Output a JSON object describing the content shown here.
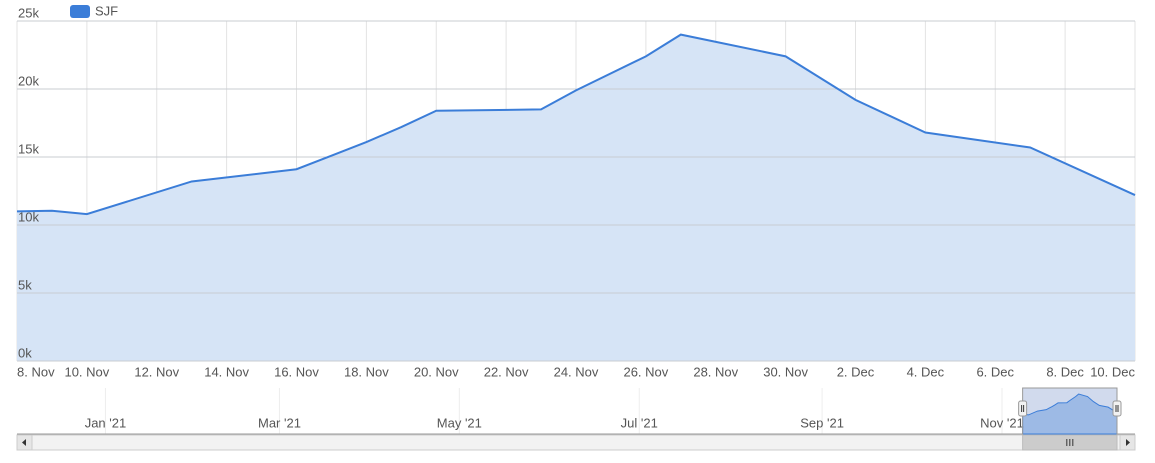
{
  "chart_data": {
    "type": "area",
    "series": [
      {
        "name": "SJF",
        "color": "#3b7dd8",
        "x": [
          "2021-11-08",
          "2021-11-09",
          "2021-11-10",
          "2021-11-13",
          "2021-11-16",
          "2021-11-17",
          "2021-11-18",
          "2021-11-19",
          "2021-11-20",
          "2021-11-23",
          "2021-11-24",
          "2021-11-26",
          "2021-11-27",
          "2021-11-30",
          "2021-12-02",
          "2021-12-04",
          "2021-12-07",
          "2021-12-10"
        ],
        "values": [
          11000,
          11050,
          10800,
          13200,
          14100,
          15100,
          16100,
          17200,
          18400,
          18500,
          19900,
          22400,
          24000,
          22400,
          19200,
          16800,
          15700,
          12200
        ]
      }
    ],
    "xlim": [
      "2021-11-08",
      "2021-12-10"
    ],
    "xticks": [
      {
        "value": "2021-11-08",
        "label": "8. Nov"
      },
      {
        "value": "2021-11-10",
        "label": "10. Nov"
      },
      {
        "value": "2021-11-12",
        "label": "12. Nov"
      },
      {
        "value": "2021-11-14",
        "label": "14. Nov"
      },
      {
        "value": "2021-11-16",
        "label": "16. Nov"
      },
      {
        "value": "2021-11-18",
        "label": "18. Nov"
      },
      {
        "value": "2021-11-20",
        "label": "20. Nov"
      },
      {
        "value": "2021-11-22",
        "label": "22. Nov"
      },
      {
        "value": "2021-11-24",
        "label": "24. Nov"
      },
      {
        "value": "2021-11-26",
        "label": "26. Nov"
      },
      {
        "value": "2021-11-28",
        "label": "28. Nov"
      },
      {
        "value": "2021-11-30",
        "label": "30. Nov"
      },
      {
        "value": "2021-12-02",
        "label": "2. Dec"
      },
      {
        "value": "2021-12-04",
        "label": "4. Dec"
      },
      {
        "value": "2021-12-06",
        "label": "6. Dec"
      },
      {
        "value": "2021-12-08",
        "label": "8. Dec"
      },
      {
        "value": "2021-12-10",
        "label": "10. Dec"
      }
    ],
    "ylim": [
      0,
      25000
    ],
    "yticks": [
      {
        "value": 0,
        "label": "0k"
      },
      {
        "value": 5000,
        "label": "5k"
      },
      {
        "value": 10000,
        "label": "10k"
      },
      {
        "value": 15000,
        "label": "15k"
      },
      {
        "value": 20000,
        "label": "20k"
      },
      {
        "value": 25000,
        "label": "25k"
      }
    ],
    "grid": true,
    "legend": "top-left",
    "navigator": {
      "xlim": [
        "2020-12-02",
        "2021-12-10"
      ],
      "xticks": [
        {
          "value": "2021-01-01",
          "label": "Jan '21"
        },
        {
          "value": "2021-03-01",
          "label": "Mar '21"
        },
        {
          "value": "2021-05-01",
          "label": "May '21"
        },
        {
          "value": "2021-07-01",
          "label": "Jul '21"
        },
        {
          "value": "2021-09-01",
          "label": "Sep '21"
        },
        {
          "value": "2021-11-01",
          "label": "Nov '21"
        }
      ]
    }
  }
}
